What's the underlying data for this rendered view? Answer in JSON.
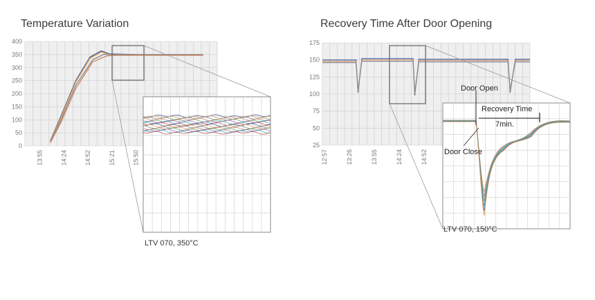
{
  "chart_data": [
    {
      "type": "line",
      "title": "Temperature Variation",
      "caption": "LTV 070, 350°C",
      "ylim": [
        0,
        400
      ],
      "y_ticks": [
        0,
        50,
        100,
        150,
        200,
        250,
        300,
        350,
        400
      ],
      "x_ticks": [
        "13:55",
        "14:24",
        "14:52",
        "15:21",
        "15:50"
      ],
      "grid": true,
      "series": [
        {
          "values": [
            [
              0.9,
              20
            ],
            [
              1.3,
              120
            ],
            [
              1.8,
              250
            ],
            [
              2.3,
              340
            ],
            [
              2.7,
              364
            ],
            [
              3.0,
              352
            ],
            [
              4.0,
              350
            ],
            [
              6.3,
              350
            ]
          ]
        },
        {
          "values": [
            [
              0.9,
              18
            ],
            [
              1.3,
              115
            ],
            [
              1.8,
              245
            ],
            [
              2.3,
              335
            ],
            [
              2.7,
              360
            ],
            [
              3.0,
              350
            ],
            [
              4.0,
              349
            ],
            [
              6.3,
              349
            ]
          ]
        },
        {
          "values": [
            [
              0.9,
              15
            ],
            [
              1.3,
              105
            ],
            [
              1.8,
              232
            ],
            [
              2.4,
              330
            ],
            [
              2.8,
              351
            ],
            [
              3.2,
              349
            ],
            [
              4.0,
              348
            ],
            [
              6.3,
              348
            ]
          ]
        },
        {
          "values": [
            [
              0.9,
              12
            ],
            [
              1.3,
              95
            ],
            [
              1.8,
              220
            ],
            [
              2.4,
              322
            ],
            [
              2.9,
              345
            ],
            [
              3.2,
              347
            ],
            [
              4.0,
              347
            ],
            [
              6.3,
              347
            ]
          ]
        }
      ],
      "zoom_inset": {
        "from_time": "15:21",
        "level": 350
      }
    },
    {
      "type": "line",
      "title": "Recovery Time After Door Opening",
      "caption": "LTV 070, 150°C",
      "ylim": [
        25,
        175
      ],
      "y_ticks": [
        25,
        50,
        75,
        100,
        125,
        150,
        175
      ],
      "x_ticks": [
        "12:57",
        "13:26",
        "13:55",
        "14:24",
        "14:52"
      ],
      "grid": true,
      "annotations": [
        {
          "label": "Door Open"
        },
        {
          "label": "Recovery Time"
        },
        {
          "label": "7min."
        },
        {
          "label": "Door Close"
        }
      ],
      "series": [
        {
          "values": [
            [
              0,
              150
            ],
            [
              1.15,
              150
            ],
            [
              1.22,
              102
            ],
            [
              1.35,
              152
            ],
            [
              3.1,
              152
            ],
            [
              3.16,
              98
            ],
            [
              3.3,
              151
            ],
            [
              6.35,
              151
            ],
            [
              6.42,
              102
            ],
            [
              6.6,
              151
            ],
            [
              7.1,
              151
            ]
          ]
        },
        {
          "values": [
            [
              0,
              148
            ],
            [
              1.15,
              148
            ],
            [
              1.22,
              104
            ],
            [
              1.35,
              150
            ],
            [
              3.1,
              150
            ],
            [
              3.16,
              100
            ],
            [
              3.3,
              149
            ],
            [
              6.35,
              149
            ],
            [
              6.42,
              104
            ],
            [
              6.6,
              149
            ],
            [
              7.1,
              149
            ]
          ]
        },
        {
          "values": [
            [
              0,
              146
            ],
            [
              1.15,
              146
            ],
            [
              1.22,
              106
            ],
            [
              1.35,
              148
            ],
            [
              3.1,
              148
            ],
            [
              3.16,
              102
            ],
            [
              3.3,
              147
            ],
            [
              6.35,
              147
            ],
            [
              6.42,
              106
            ],
            [
              6.6,
              147
            ],
            [
              7.1,
              147
            ]
          ]
        }
      ]
    }
  ],
  "colors": {
    "series": [
      "#3f5d9a",
      "#e0a05a",
      "#8a8a8a",
      "#c98b6e",
      "#6aa06a",
      "#9b6fb0",
      "#4aa4c8",
      "#c05050"
    ],
    "grid": "#c9c9c9",
    "plot_bg": "#efefef",
    "zoom_box": "#777777"
  }
}
